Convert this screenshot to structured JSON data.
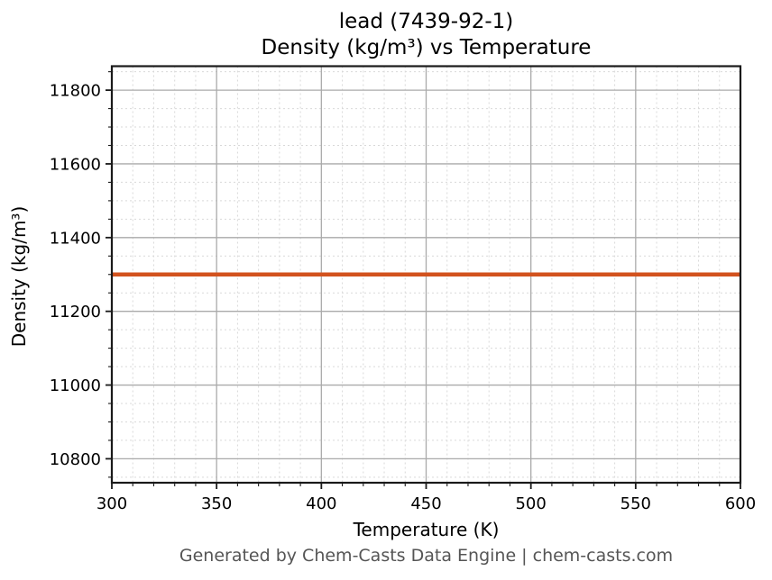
{
  "figure": {
    "title_line1": "lead (7439-92-1)",
    "title_line2": "Density (kg/m³) vs Temperature",
    "footer": "Generated by Chem-Casts Data Engine | chem-casts.com"
  },
  "chart_data": {
    "type": "line",
    "title": "lead (7439-92-1)",
    "subtitle": "Density (kg/m³) vs Temperature",
    "xlabel": "Temperature (K)",
    "ylabel": "Density (kg/m³)",
    "xlim": [
      300,
      600
    ],
    "ylim": [
      10735,
      11865
    ],
    "x_major_ticks": [
      300,
      350,
      400,
      450,
      500,
      550,
      600
    ],
    "y_major_ticks": [
      10800,
      11000,
      11200,
      11400,
      11600,
      11800
    ],
    "x_minor_step": 10,
    "y_minor_step": 50,
    "grid": {
      "major": "solid",
      "minor": "dotted"
    },
    "legend": "none",
    "series": [
      {
        "name": "density",
        "x": [
          300,
          600
        ],
        "y": [
          11300,
          11300
        ],
        "color": "#d2521e",
        "linewidth": 4.5
      }
    ]
  },
  "colors": {
    "line": "#d2521e",
    "major_grid": "#aaaaaa",
    "minor_grid": "#d9d9d9",
    "spine": "#1a1a1a",
    "tick": "#1a1a1a",
    "title_text": "#000000",
    "footer_text": "#555555",
    "background": "#ffffff"
  }
}
